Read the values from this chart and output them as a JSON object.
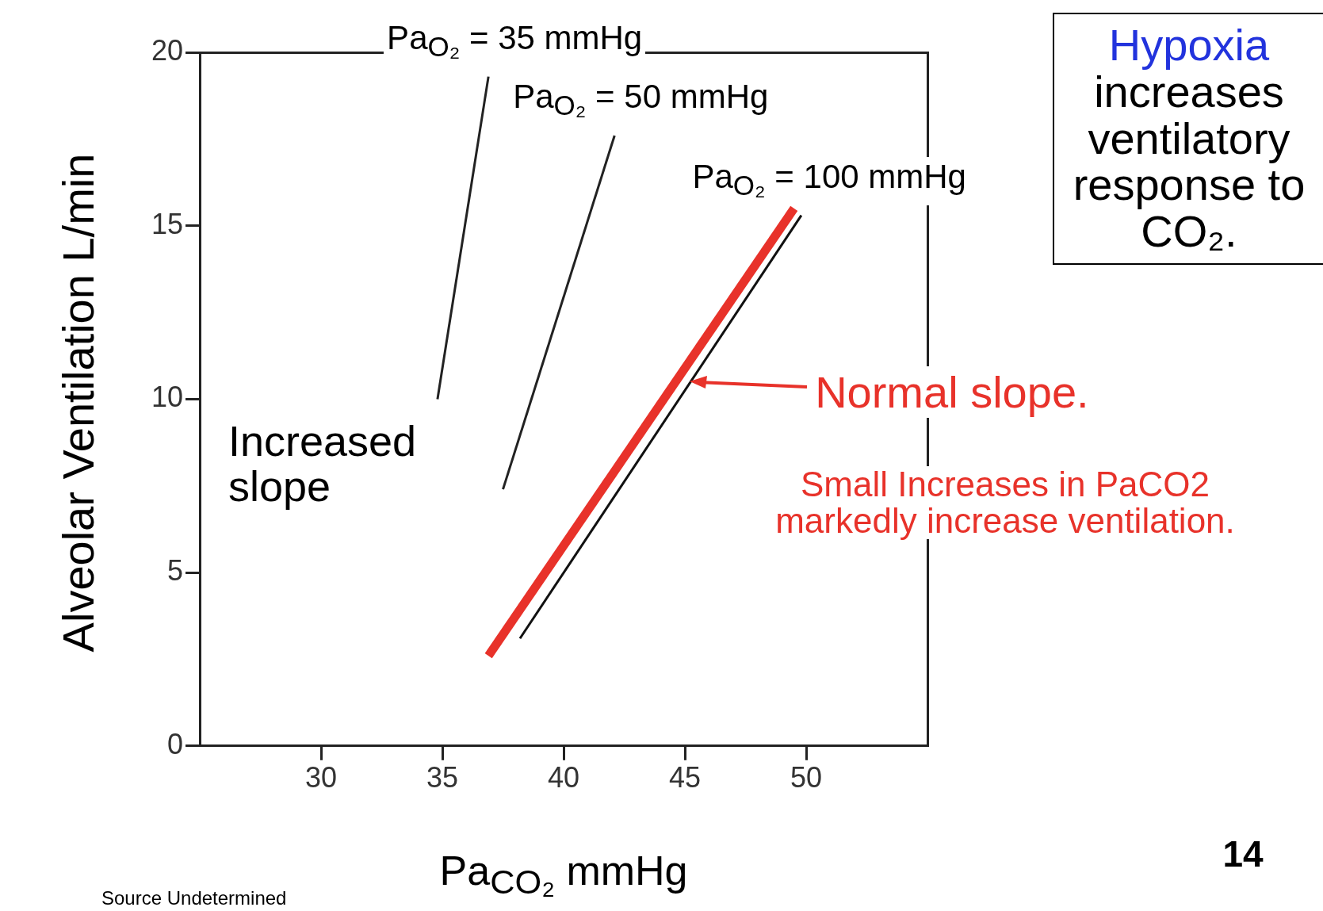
{
  "chart_data": {
    "type": "line",
    "xlabel": "Pa$_{CO₂}$ mmHg",
    "ylabel": "Alveolar Ventilation L/min",
    "xlim": [
      25,
      55
    ],
    "xticks": [
      30,
      35,
      40,
      45,
      50
    ],
    "ylim": [
      0,
      20
    ],
    "yticks": [
      0,
      5,
      10,
      15,
      20
    ],
    "grid": false,
    "legend": false,
    "series": [
      {
        "name": "Pa$_{O₂}$ = 35 mmHg",
        "color": "#222222",
        "x": [
          34.8,
          36.9
        ],
        "values": [
          10,
          19.3
        ]
      },
      {
        "name": "Pa$_{O₂}$ = 50 mmHg",
        "color": "#222222",
        "x": [
          37.5,
          42.1
        ],
        "values": [
          7.4,
          17.6
        ]
      },
      {
        "name": "Pa$_{O₂}$ = 100 mmHg",
        "color": "#111111",
        "x": [
          38.2,
          49.8
        ],
        "values": [
          3.1,
          15.3
        ]
      },
      {
        "color": "#e8322a",
        "x": [
          36.9,
          49.5
        ],
        "values": [
          2.6,
          15.5
        ]
      }
    ],
    "annotations": [
      "Increased slope",
      {
        "text": "Normal slope.",
        "x": 45.2,
        "y": 10.5
      },
      "Small Increases in PaCO2 markedly increase ventilation.",
      "Hypoxia increases ventilatory response to CO₂.",
      "14",
      "Source Undetermined"
    ]
  }
}
